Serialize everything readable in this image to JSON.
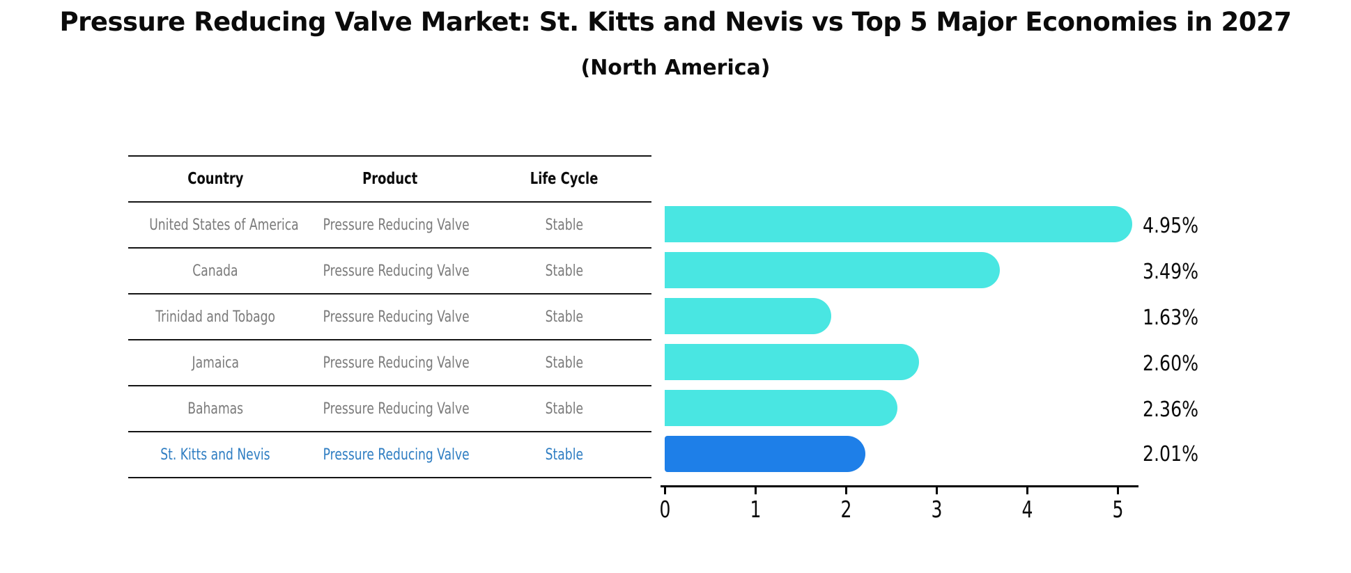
{
  "title": "Pressure Reducing Valve Market: St. Kitts and Nevis vs Top 5 Major Economies in 2027",
  "subtitle": "(North America)",
  "table": {
    "headers": [
      "Country",
      "Product",
      "Life Cycle"
    ],
    "rows": [
      {
        "country": "United States of America",
        "product": "Pressure Reducing Valve",
        "life_cycle": "Stable",
        "highlighted": false
      },
      {
        "country": "Canada",
        "product": "Pressure Reducing Valve",
        "life_cycle": "Stable",
        "highlighted": false
      },
      {
        "country": "Trinidad and Tobago",
        "product": "Pressure Reducing Valve",
        "life_cycle": "Stable",
        "highlighted": false
      },
      {
        "country": "Jamaica",
        "product": "Pressure Reducing Valve",
        "life_cycle": "Stable",
        "highlighted": false
      },
      {
        "country": "Bahamas",
        "product": "Pressure Reducing Valve",
        "life_cycle": "Stable",
        "highlighted": false
      },
      {
        "country": "St. Kitts and Nevis",
        "product": "Pressure Reducing Valve",
        "life_cycle": "Stable",
        "highlighted": true
      }
    ]
  },
  "chart_data": {
    "type": "bar",
    "orientation": "horizontal",
    "categories": [
      "United States of America",
      "Canada",
      "Trinidad and Tobago",
      "Jamaica",
      "Bahamas",
      "St. Kitts and Nevis"
    ],
    "values": [
      4.95,
      3.49,
      1.63,
      2.6,
      2.36,
      2.01
    ],
    "labels": [
      "4.95%",
      "3.49%",
      "1.63%",
      "2.60%",
      "2.36%",
      "2.01%"
    ],
    "xlim": [
      0,
      5
    ],
    "x_ticks": [
      "0",
      "1",
      "2",
      "3",
      "4",
      "5"
    ],
    "grid": false,
    "legend": "none",
    "highlight_index": 5
  },
  "colors": {
    "bar": "#49E6E2",
    "highlight_bar": "#1E7FE8",
    "highlight_text": "#2e7dc2",
    "table_text": "#7a7a7a",
    "axis": "#000000"
  }
}
